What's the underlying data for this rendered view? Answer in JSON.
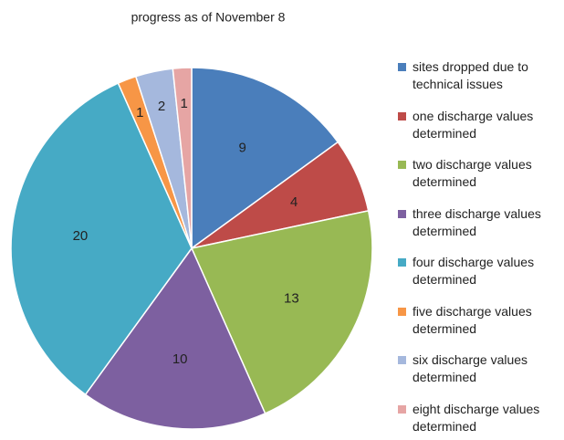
{
  "chart_data": {
    "type": "pie",
    "title": "progress as of November  8",
    "categories": [
      "sites dropped due to technical issues",
      "one discharge values determined",
      "two discharge values determined",
      "three discharge values determined",
      "four discharge values determined",
      "five discharge values determined",
      "six discharge values determined",
      "eight discharge values determined"
    ],
    "values": [
      9,
      4,
      13,
      10,
      20,
      1,
      2,
      1
    ],
    "colors": [
      "#4a7ebb",
      "#be4b48",
      "#98b954",
      "#7d60a0",
      "#46aac5",
      "#f79646",
      "#a5b8dd",
      "#e6a5a4"
    ],
    "legend": "right"
  }
}
